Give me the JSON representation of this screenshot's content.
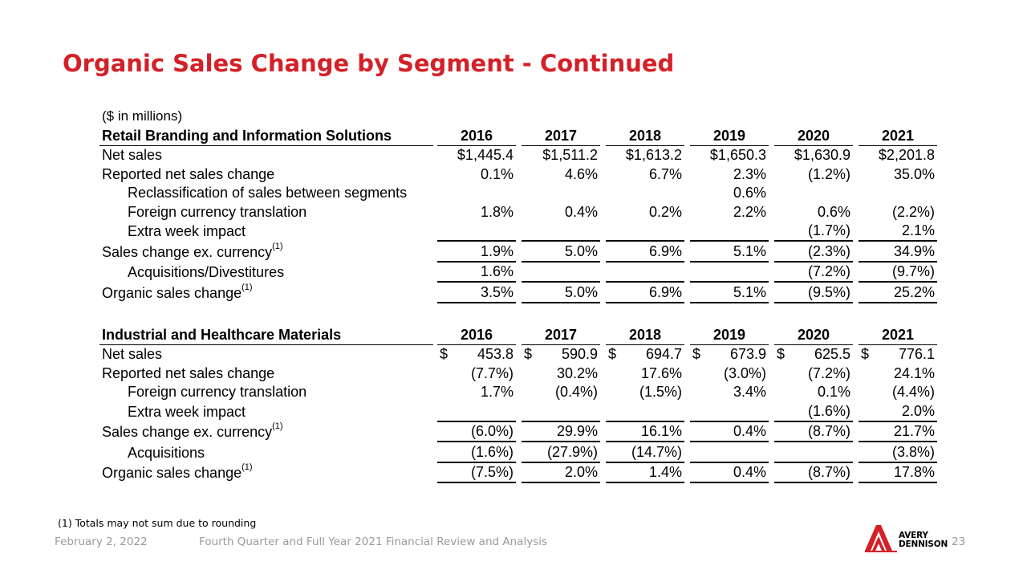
{
  "slide": {
    "title": "Organic Sales Change by Segment - Continued",
    "units": "($ in millions)",
    "footnote": "(1) Totals may not sum due to rounding",
    "footer_date": "February 2, 2022",
    "footer_title": "Fourth Quarter and Full Year 2021 Financial Review and Analysis",
    "page_number": "23",
    "brand_line1": "AVERY",
    "brand_line2": "DENNISON",
    "brand_color": "#d42027",
    "logo_icon": "avery-dennison-logo-icon"
  },
  "tables": [
    {
      "segment": "Retail Branding and Information Solutions",
      "years": [
        "2016",
        "2017",
        "2018",
        "2019",
        "2020",
        "2021"
      ],
      "rows": [
        {
          "label": "Net sales",
          "sup": "",
          "values": [
            {
              "d": "",
              "v": "$1,445.4"
            },
            {
              "d": "",
              "v": "$1,511.2"
            },
            {
              "d": "",
              "v": "$1,613.2"
            },
            {
              "d": "",
              "v": "$1,650.3"
            },
            {
              "d": "",
              "v": "$1,630.9"
            },
            {
              "d": "",
              "v": "$2,201.8"
            }
          ]
        },
        {
          "label": "Reported net sales change",
          "sup": "",
          "values": [
            {
              "d": "",
              "v": "0.1%"
            },
            {
              "d": "",
              "v": "4.6%"
            },
            {
              "d": "",
              "v": "6.7%"
            },
            {
              "d": "",
              "v": "2.3%"
            },
            {
              "d": "",
              "v": "(1.2%)"
            },
            {
              "d": "",
              "v": "35.0%"
            }
          ]
        },
        {
          "label": "Reclassification of sales between segments",
          "sup": "",
          "values": [
            {
              "d": "",
              "v": ""
            },
            {
              "d": "",
              "v": ""
            },
            {
              "d": "",
              "v": ""
            },
            {
              "d": "",
              "v": "0.6%"
            },
            {
              "d": "",
              "v": ""
            },
            {
              "d": "",
              "v": ""
            }
          ]
        },
        {
          "label": "Foreign currency translation",
          "sup": "",
          "values": [
            {
              "d": "",
              "v": "1.8%"
            },
            {
              "d": "",
              "v": "0.4%"
            },
            {
              "d": "",
              "v": "0.2%"
            },
            {
              "d": "",
              "v": "2.2%"
            },
            {
              "d": "",
              "v": "0.6%"
            },
            {
              "d": "",
              "v": "(2.2%)"
            }
          ]
        },
        {
          "label": "Extra week impact",
          "sup": "",
          "values": [
            {
              "d": "",
              "v": ""
            },
            {
              "d": "",
              "v": ""
            },
            {
              "d": "",
              "v": ""
            },
            {
              "d": "",
              "v": ""
            },
            {
              "d": "",
              "v": "(1.7%)"
            },
            {
              "d": "",
              "v": "2.1%"
            }
          ]
        },
        {
          "label": "Sales change ex. currency",
          "sup": "(1)",
          "values": [
            {
              "d": "",
              "v": "1.9%"
            },
            {
              "d": "",
              "v": "5.0%"
            },
            {
              "d": "",
              "v": "6.9%"
            },
            {
              "d": "",
              "v": "5.1%"
            },
            {
              "d": "",
              "v": "(2.3%)"
            },
            {
              "d": "",
              "v": "34.9%"
            }
          ]
        },
        {
          "label": "Acquisitions/Divestitures",
          "sup": "",
          "values": [
            {
              "d": "",
              "v": "1.6%"
            },
            {
              "d": "",
              "v": ""
            },
            {
              "d": "",
              "v": ""
            },
            {
              "d": "",
              "v": ""
            },
            {
              "d": "",
              "v": "(7.2%)"
            },
            {
              "d": "",
              "v": "(9.7%)"
            }
          ]
        },
        {
          "label": "Organic sales change",
          "sup": "(1)",
          "values": [
            {
              "d": "",
              "v": "3.5%"
            },
            {
              "d": "",
              "v": "5.0%"
            },
            {
              "d": "",
              "v": "6.9%"
            },
            {
              "d": "",
              "v": "5.1%"
            },
            {
              "d": "",
              "v": "(9.5%)"
            },
            {
              "d": "",
              "v": "25.2%"
            }
          ]
        }
      ]
    },
    {
      "segment": "Industrial and Healthcare Materials",
      "years": [
        "2016",
        "2017",
        "2018",
        "2019",
        "2020",
        "2021"
      ],
      "rows": [
        {
          "label": "Net sales",
          "sup": "",
          "values": [
            {
              "d": "$",
              "v": "453.8"
            },
            {
              "d": "$",
              "v": "590.9"
            },
            {
              "d": "$",
              "v": "694.7"
            },
            {
              "d": "$",
              "v": "673.9"
            },
            {
              "d": "$",
              "v": "625.5"
            },
            {
              "d": "$",
              "v": "776.1"
            }
          ]
        },
        {
          "label": "Reported net sales change",
          "sup": "",
          "values": [
            {
              "d": "",
              "v": "(7.7%)"
            },
            {
              "d": "",
              "v": "30.2%"
            },
            {
              "d": "",
              "v": "17.6%"
            },
            {
              "d": "",
              "v": "(3.0%)"
            },
            {
              "d": "",
              "v": "(7.2%)"
            },
            {
              "d": "",
              "v": "24.1%"
            }
          ]
        },
        {
          "label": "Foreign currency translation",
          "sup": "",
          "values": [
            {
              "d": "",
              "v": "1.7%"
            },
            {
              "d": "",
              "v": "(0.4%)"
            },
            {
              "d": "",
              "v": "(1.5%)"
            },
            {
              "d": "",
              "v": "3.4%"
            },
            {
              "d": "",
              "v": "0.1%"
            },
            {
              "d": "",
              "v": "(4.4%)"
            }
          ]
        },
        {
          "label": "Extra week impact",
          "sup": "",
          "values": [
            {
              "d": "",
              "v": ""
            },
            {
              "d": "",
              "v": ""
            },
            {
              "d": "",
              "v": ""
            },
            {
              "d": "",
              "v": ""
            },
            {
              "d": "",
              "v": "(1.6%)"
            },
            {
              "d": "",
              "v": "2.0%"
            }
          ]
        },
        {
          "label": "Sales change ex. currency",
          "sup": "(1)",
          "values": [
            {
              "d": "",
              "v": "(6.0%)"
            },
            {
              "d": "",
              "v": "29.9%"
            },
            {
              "d": "",
              "v": "16.1%"
            },
            {
              "d": "",
              "v": "0.4%"
            },
            {
              "d": "",
              "v": "(8.7%)"
            },
            {
              "d": "",
              "v": "21.7%"
            }
          ]
        },
        {
          "label": "Acquisitions",
          "sup": "",
          "values": [
            {
              "d": "",
              "v": "(1.6%)"
            },
            {
              "d": "",
              "v": "(27.9%)"
            },
            {
              "d": "",
              "v": "(14.7%)"
            },
            {
              "d": "",
              "v": ""
            },
            {
              "d": "",
              "v": ""
            },
            {
              "d": "",
              "v": "(3.8%)"
            }
          ]
        },
        {
          "label": "Organic sales change",
          "sup": "(1)",
          "values": [
            {
              "d": "",
              "v": "(7.5%)"
            },
            {
              "d": "",
              "v": "2.0%"
            },
            {
              "d": "",
              "v": "1.4%"
            },
            {
              "d": "",
              "v": "0.4%"
            },
            {
              "d": "",
              "v": "(8.7%)"
            },
            {
              "d": "",
              "v": "17.8%"
            }
          ]
        }
      ]
    }
  ]
}
